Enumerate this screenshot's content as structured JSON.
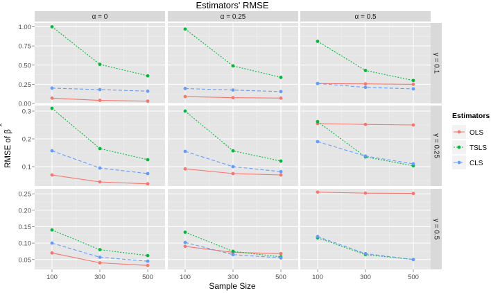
{
  "chart_data": {
    "type": "line",
    "title": "Estimators' RMSE",
    "xlabel": "Sample Size",
    "ylabel_main": "RMSE of ",
    "ylabel_symbol": "β",
    "ylabel_hat": "^",
    "x": [
      100,
      300,
      500
    ],
    "x_ticks": [
      "100",
      "300",
      "500"
    ],
    "col_strips": [
      "α = 0",
      "α = 0.25",
      "α = 0.5"
    ],
    "row_strips": [
      "γ = 0.1",
      "γ = 0.25",
      "γ = 0.5"
    ],
    "legend": {
      "title": "Estimators",
      "items": [
        {
          "name": "OLS",
          "color": "#f8766d",
          "dash": "solid"
        },
        {
          "name": "TSLS",
          "color": "#00ba38",
          "dash": "dotted"
        },
        {
          "name": "CLS",
          "color": "#619cff",
          "dash": "dashed"
        }
      ]
    },
    "rows": [
      {
        "ylim": [
          0.0,
          1.05
        ],
        "y_ticks": [
          0.0,
          0.25,
          0.5,
          0.75,
          1.0
        ],
        "y_tick_labels": [
          "0.00",
          "0.25",
          "0.50",
          "0.75",
          "1.00"
        ],
        "panels": [
          {
            "OLS": [
              0.07,
              0.04,
              0.03
            ],
            "TSLS": [
              1.0,
              0.51,
              0.36
            ],
            "CLS": [
              0.2,
              0.18,
              0.16
            ]
          },
          {
            "OLS": [
              0.09,
              0.075,
              0.07
            ],
            "TSLS": [
              0.97,
              0.49,
              0.34
            ],
            "CLS": [
              0.195,
              0.175,
              0.155
            ]
          },
          {
            "OLS": [
              0.26,
              0.255,
              0.25
            ],
            "TSLS": [
              0.81,
              0.43,
              0.3
            ],
            "CLS": [
              0.26,
              0.21,
              0.19
            ]
          }
        ]
      },
      {
        "ylim": [
          0.03,
          0.32
        ],
        "y_ticks": [
          0.1,
          0.2,
          0.3
        ],
        "y_tick_labels": [
          "0.1",
          "0.2",
          "0.3"
        ],
        "panels": [
          {
            "OLS": [
              0.07,
              0.045,
              0.038
            ],
            "TSLS": [
              0.31,
              0.165,
              0.125
            ],
            "CLS": [
              0.157,
              0.095,
              0.075
            ]
          },
          {
            "OLS": [
              0.092,
              0.075,
              0.07
            ],
            "TSLS": [
              0.3,
              0.157,
              0.12
            ],
            "CLS": [
              0.155,
              0.1,
              0.082
            ]
          },
          {
            "OLS": [
              0.255,
              0.252,
              0.25
            ],
            "TSLS": [
              0.262,
              0.135,
              0.103
            ],
            "CLS": [
              0.19,
              0.138,
              0.11
            ]
          }
        ]
      },
      {
        "ylim": [
          0.02,
          0.265
        ],
        "y_ticks": [
          0.05,
          0.1,
          0.15,
          0.2,
          0.25
        ],
        "y_tick_labels": [
          "0.05",
          "0.10",
          "0.15",
          "0.20",
          "0.25"
        ],
        "panels": [
          {
            "OLS": [
              0.07,
              0.04,
              0.032
            ],
            "TSLS": [
              0.14,
              0.08,
              0.062
            ],
            "CLS": [
              0.1,
              0.057,
              0.045
            ]
          },
          {
            "OLS": [
              0.09,
              0.072,
              0.068
            ],
            "TSLS": [
              0.133,
              0.075,
              0.058
            ],
            "CLS": [
              0.102,
              0.065,
              0.055
            ]
          },
          {
            "OLS": [
              0.255,
              0.252,
              0.251
            ],
            "TSLS": [
              0.116,
              0.065,
              0.05
            ],
            "CLS": [
              0.12,
              0.068,
              0.05
            ]
          }
        ]
      }
    ]
  }
}
